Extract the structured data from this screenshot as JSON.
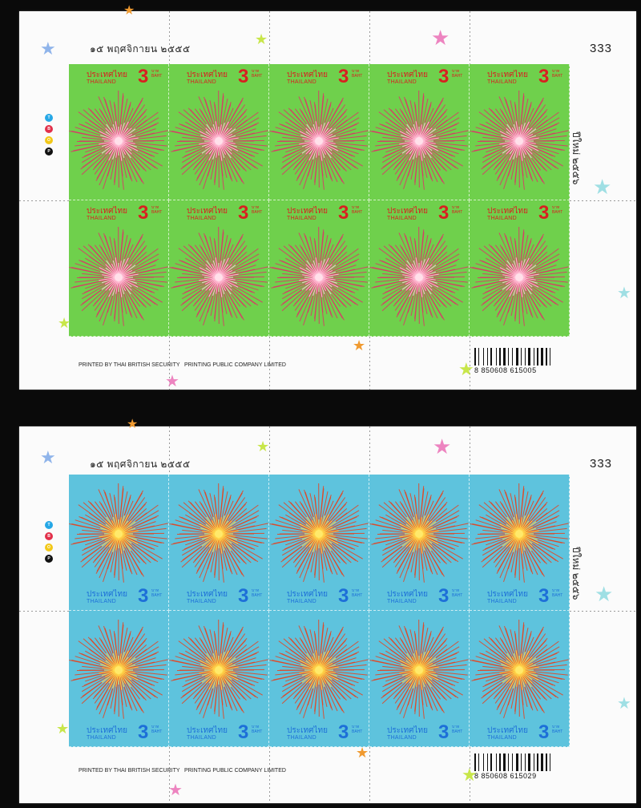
{
  "sheets": [
    {
      "date": "๑๕ พฤศจิกายน ๒๕๕๕",
      "sheet_number": "333",
      "side_text": "ปีใหม่ ๒๕๕๖",
      "footer_left": "PRINTED BY THAI BRITISH SECURITY",
      "footer_mid": "PRINTING PUBLIC COMPANY LIMITED",
      "barcode": "8 850608 615005",
      "stamp": {
        "country_thai": "ประเทศไทย",
        "country_en": "THAILAND",
        "value": "3",
        "value_small": "บาท BAHT",
        "theme": "green",
        "background_color": "#6fd04c",
        "firework_color": "#e0306a"
      }
    },
    {
      "date": "๑๕ พฤศจิกายน ๒๕๕๕",
      "sheet_number": "333",
      "side_text": "ปีใหม่ ๒๕๕๖",
      "footer_left": "PRINTED BY THAI BRITISH SECURITY",
      "footer_mid": "PRINTING PUBLIC COMPANY LIMITED",
      "barcode": "8 850608 615029",
      "stamp": {
        "country_thai": "ประเทศไทย",
        "country_en": "THAILAND",
        "value": "3",
        "value_small": "บาท BAHT",
        "theme": "blue",
        "background_color": "#5ec3dd",
        "firework_color": "#e8401c"
      }
    }
  ],
  "plate_markers": [
    "T",
    "B",
    "O",
    "P"
  ],
  "plate_colors": [
    "#25a7e6",
    "#e2304a",
    "#f2c818",
    "#111111"
  ],
  "star_colors": [
    "#8fb4ea",
    "#ed84c0",
    "#c8e64a",
    "#f09a30",
    "#9fdfe4"
  ]
}
